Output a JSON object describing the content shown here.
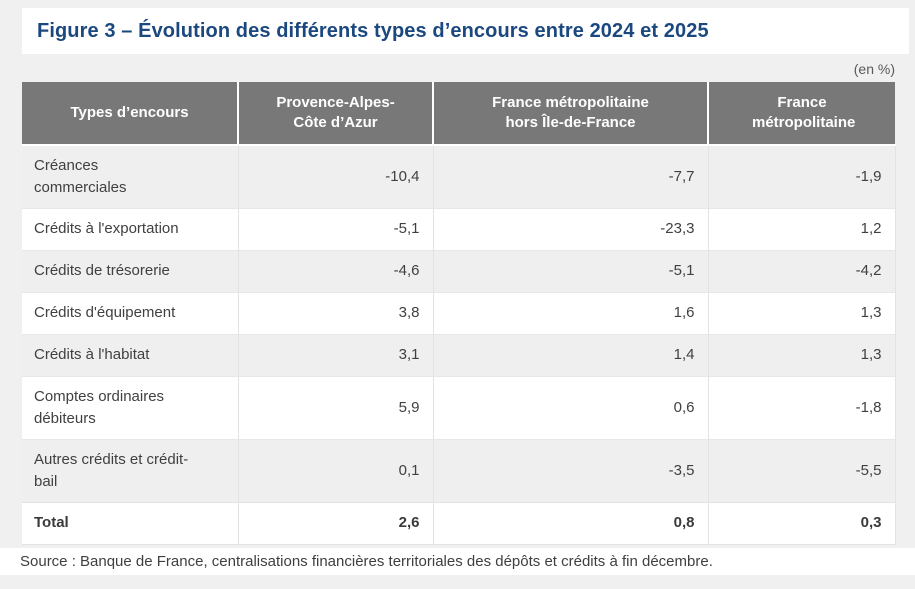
{
  "figure": {
    "title": "Figure 3 – Évolution des différents types d’encours entre 2024 et 2025",
    "unit_label": "(en %)"
  },
  "table": {
    "columns": [
      "Types d’encours",
      "Provence-Alpes-Côte d’Azur",
      "France métropolitaine hors Île-de-France",
      "France métropolitaine"
    ],
    "rows": [
      {
        "label": "Créances commerciales",
        "values": [
          "-10,4",
          "-7,7",
          "-1,9"
        ]
      },
      {
        "label": "Crédits à l'exportation",
        "values": [
          "-5,1",
          "-23,3",
          "1,2"
        ]
      },
      {
        "label": "Crédits de trésorerie",
        "values": [
          "-4,6",
          "-5,1",
          "-4,2"
        ]
      },
      {
        "label": "Crédits d'équipement",
        "values": [
          "3,8",
          "1,6",
          "1,3"
        ]
      },
      {
        "label": "Crédits à l'habitat",
        "values": [
          "3,1",
          "1,4",
          "1,3"
        ]
      },
      {
        "label": "Comptes ordinaires débiteurs",
        "values": [
          "5,9",
          "0,6",
          "-1,8"
        ]
      },
      {
        "label": "Autres crédits et crédit-bail",
        "values": [
          "0,1",
          "-3,5",
          "-5,5"
        ]
      }
    ],
    "total_row": {
      "label": "Total",
      "values": [
        "2,6",
        "0,8",
        "0,3"
      ]
    }
  },
  "source": "Source : Banque de France, centralisations financières territoriales des dépôts et crédits à fin décembre.",
  "chart_data": {
    "type": "table",
    "title": "Figure 3 – Évolution des différents types d’encours entre 2024 et 2025",
    "unit": "en %",
    "categories": [
      "Créances commerciales",
      "Crédits à l'exportation",
      "Crédits de trésorerie",
      "Crédits d'équipement",
      "Crédits à l'habitat",
      "Comptes ordinaires débiteurs",
      "Autres crédits et crédit-bail",
      "Total"
    ],
    "series": [
      {
        "name": "Provence-Alpes-Côte d’Azur",
        "values": [
          -10.4,
          -5.1,
          -4.6,
          3.8,
          3.1,
          5.9,
          0.1,
          2.6
        ]
      },
      {
        "name": "France métropolitaine hors Île-de-France",
        "values": [
          -7.7,
          -23.3,
          -5.1,
          1.6,
          1.4,
          0.6,
          -3.5,
          0.8
        ]
      },
      {
        "name": "France métropolitaine",
        "values": [
          -1.9,
          1.2,
          -4.2,
          1.3,
          1.3,
          -1.8,
          -5.5,
          0.3
        ]
      }
    ]
  },
  "colors": {
    "title": "#1c4880",
    "header_background": "#787878",
    "header_text": "#ffffff",
    "row_stripe": "#efefef",
    "body_text": "#404040",
    "page_background": "#f0f0f0"
  }
}
